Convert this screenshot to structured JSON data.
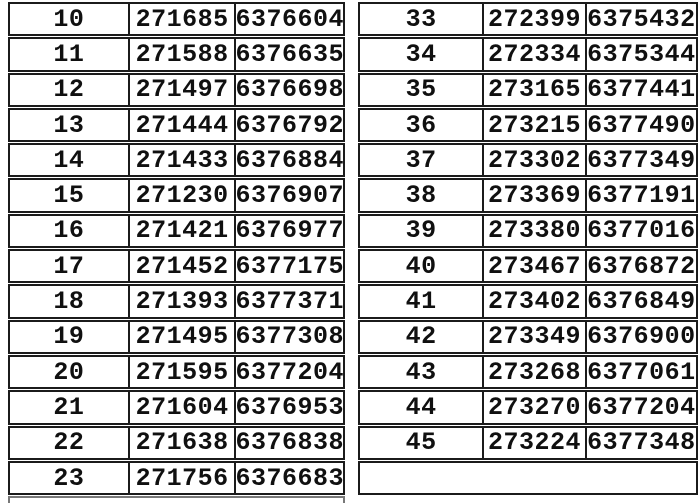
{
  "document": {
    "kind": "scanned-coordinate-table-page",
    "colors": {
      "background": "#ffffff",
      "table_border": "#1b1b1b",
      "text": "#101010",
      "faint_cropped_line": "#787878"
    }
  },
  "tables": [
    {
      "name": "left",
      "rows": [
        [
          "10",
          "271685",
          "6376604"
        ],
        [
          "11",
          "271588",
          "6376635"
        ],
        [
          "12",
          "271497",
          "6376698"
        ],
        [
          "13",
          "271444",
          "6376792"
        ],
        [
          "14",
          "271433",
          "6376884"
        ],
        [
          "15",
          "271230",
          "6376907"
        ],
        [
          "16",
          "271421",
          "6376977"
        ],
        [
          "17",
          "271452",
          "6377175"
        ],
        [
          "18",
          "271393",
          "6377371"
        ],
        [
          "19",
          "271495",
          "6377308"
        ],
        [
          "20",
          "271595",
          "6377204"
        ],
        [
          "21",
          "271604",
          "6376953"
        ],
        [
          "22",
          "271638",
          "6376838"
        ],
        [
          "23",
          "271756",
          "6376683"
        ]
      ],
      "trailing_empty_row": false,
      "partial_next_row": true
    },
    {
      "name": "right",
      "rows": [
        [
          "33",
          "272399",
          "6375432"
        ],
        [
          "34",
          "272334",
          "6375344"
        ],
        [
          "35",
          "273165",
          "6377441"
        ],
        [
          "36",
          "273215",
          "6377490"
        ],
        [
          "37",
          "273302",
          "6377349"
        ],
        [
          "38",
          "273369",
          "6377191"
        ],
        [
          "39",
          "273380",
          "6377016"
        ],
        [
          "40",
          "273467",
          "6376872"
        ],
        [
          "41",
          "273402",
          "6376849"
        ],
        [
          "42",
          "273349",
          "6376900"
        ],
        [
          "43",
          "273268",
          "6377061"
        ],
        [
          "44",
          "273270",
          "6377204"
        ],
        [
          "45",
          "273224",
          "6377348"
        ]
      ],
      "trailing_empty_row": true,
      "partial_next_row": false
    }
  ]
}
